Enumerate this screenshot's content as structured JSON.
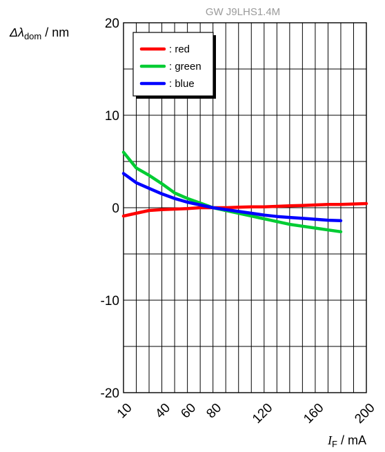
{
  "chart_data": {
    "type": "line",
    "watermark": "GW J9LHS1.4M",
    "ylabel": {
      "symbol": "Δλ",
      "sub": "dom",
      "unit": " / nm"
    },
    "xlabel": {
      "symbol": "I",
      "sub": "F",
      "unit": " / mA"
    },
    "ylim": [
      -20,
      20
    ],
    "yticks": [
      -20,
      -10,
      0,
      10,
      20
    ],
    "xticks": [
      {
        "value": 10,
        "label": "10"
      },
      {
        "value": 40,
        "label": "40"
      },
      {
        "value": 60,
        "label": "60"
      },
      {
        "value": 80,
        "label": "80"
      },
      {
        "value": 120,
        "label": "120"
      },
      {
        "value": 160,
        "label": "160"
      },
      {
        "value": 200,
        "label": "200"
      }
    ],
    "x_grid": [
      10,
      20,
      30,
      40,
      50,
      60,
      70,
      80,
      90,
      100,
      110,
      120,
      130,
      140,
      150,
      160,
      170,
      180,
      190,
      200
    ],
    "y_grid": [
      -20,
      -15,
      -10,
      -5,
      0,
      5,
      10,
      15,
      20
    ],
    "grid": true,
    "legend_position": "top-left",
    "series": [
      {
        "name": ": red",
        "color": "#ff0000",
        "x": [
          10,
          20,
          30,
          40,
          50,
          60,
          70,
          80,
          90,
          100,
          110,
          120,
          130,
          140,
          150,
          160,
          170,
          180,
          190,
          200
        ],
        "y": [
          -0.9,
          -0.6,
          -0.3,
          -0.2,
          -0.15,
          -0.1,
          0.0,
          0.0,
          0.0,
          0.05,
          0.1,
          0.1,
          0.15,
          0.2,
          0.25,
          0.3,
          0.35,
          0.35,
          0.4,
          0.45
        ]
      },
      {
        "name": ": green",
        "color": "#00cc33",
        "x": [
          10,
          20,
          30,
          40,
          50,
          60,
          70,
          80,
          90,
          100,
          110,
          120,
          130,
          140,
          150,
          160,
          170,
          180
        ],
        "y": [
          6.0,
          4.3,
          3.5,
          2.6,
          1.6,
          1.0,
          0.5,
          0.0,
          -0.3,
          -0.6,
          -0.9,
          -1.2,
          -1.5,
          -1.8,
          -2.0,
          -2.2,
          -2.4,
          -2.6
        ]
      },
      {
        "name": ": blue",
        "color": "#0000ff",
        "x": [
          10,
          20,
          30,
          40,
          50,
          60,
          70,
          80,
          90,
          100,
          110,
          120,
          130,
          140,
          150,
          160,
          170,
          180
        ],
        "y": [
          3.7,
          2.7,
          2.1,
          1.5,
          1.0,
          0.6,
          0.3,
          0.0,
          -0.2,
          -0.4,
          -0.6,
          -0.8,
          -0.95,
          -1.05,
          -1.15,
          -1.25,
          -1.35,
          -1.4
        ]
      }
    ]
  }
}
